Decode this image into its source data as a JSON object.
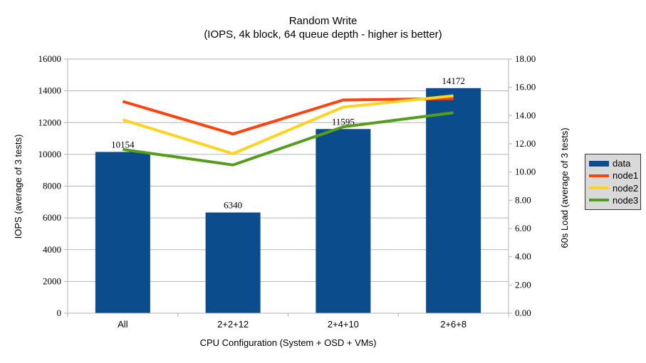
{
  "chart": {
    "title": "Random Write",
    "subtitle": "(IOPS, 4k block, 64 queue depth - higher is better)",
    "x_axis_title": "CPU Configuration (System + OSD + VMs)",
    "y_left_title": "IOPS (average of 3 tests)",
    "y_right_title": "60s Load (average of 3 tests)",
    "legend": [
      {
        "label": "data",
        "type": "bar",
        "color": "#0b4d8c"
      },
      {
        "label": "node1",
        "type": "line",
        "color": "#ff420e"
      },
      {
        "label": "node2",
        "type": "line",
        "color": "#ffd320"
      },
      {
        "label": "node3",
        "type": "line",
        "color": "#579d1c"
      }
    ],
    "colors": {
      "bar": "#0b4d8c",
      "node1": "#ff420e",
      "node2": "#ffd320",
      "node3": "#579d1c",
      "grid": "#b3b3b3",
      "axis": "#b3b3b3",
      "legend_bg": "#d9d9d9"
    }
  },
  "chart_data": {
    "type": "bar+line",
    "title": "Random Write (IOPS, 4k block, 64 queue depth - higher is better)",
    "xlabel": "CPU Configuration (System + OSD + VMs)",
    "ylabel_left": "IOPS (average of 3 tests)",
    "ylabel_right": "60s Load (average of 3 tests)",
    "categories": [
      "All",
      "2+2+12",
      "2+4+10",
      "2+6+8"
    ],
    "series": [
      {
        "name": "data",
        "type": "bar",
        "axis": "left",
        "color": "#0b4d8c",
        "values": [
          10154,
          6340,
          11595,
          14172
        ],
        "data_labels": [
          "10154",
          "6340",
          "11595",
          "14172"
        ]
      },
      {
        "name": "node1",
        "type": "line",
        "axis": "right",
        "color": "#ff420e",
        "values": [
          15.0,
          12.7,
          15.1,
          15.2
        ]
      },
      {
        "name": "node2",
        "type": "line",
        "axis": "right",
        "color": "#ffd320",
        "values": [
          13.7,
          11.3,
          14.6,
          15.4
        ]
      },
      {
        "name": "node3",
        "type": "line",
        "axis": "right",
        "color": "#579d1c",
        "values": [
          11.6,
          10.5,
          13.2,
          14.2
        ]
      }
    ],
    "y_left_axis": {
      "min": 0,
      "max": 16000,
      "step": 2000,
      "tick_labels": [
        "0",
        "2000",
        "4000",
        "6000",
        "8000",
        "10000",
        "12000",
        "14000",
        "16000"
      ]
    },
    "y_right_axis": {
      "min": 0,
      "max": 18,
      "step": 2,
      "tick_labels": [
        "0.00",
        "2.00",
        "4.00",
        "6.00",
        "8.00",
        "10.00",
        "12.00",
        "14.00",
        "16.00",
        "18.00"
      ]
    },
    "grid": true,
    "legend_position": "right"
  }
}
